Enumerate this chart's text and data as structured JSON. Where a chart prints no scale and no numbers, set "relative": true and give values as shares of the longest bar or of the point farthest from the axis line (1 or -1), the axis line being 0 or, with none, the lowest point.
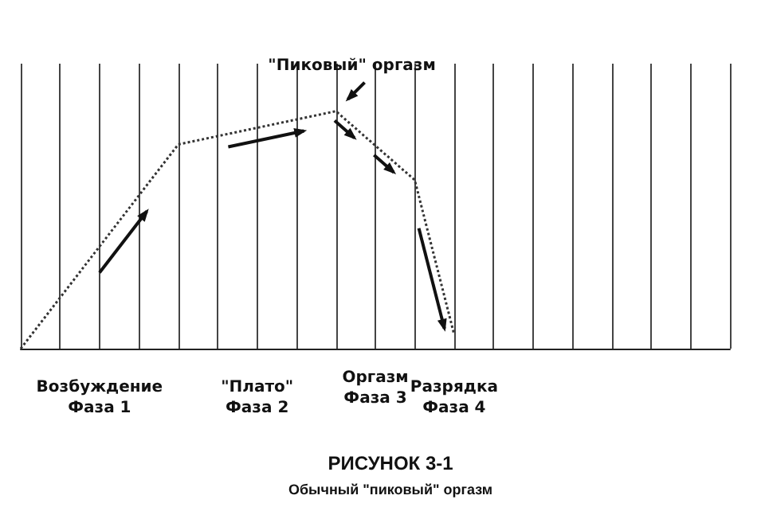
{
  "chart_data": {
    "type": "line",
    "relative": true,
    "title": "РИСУНОК 3-1",
    "subtitle": "Обычный \"пиковый\" оргазм",
    "categories": [
      null,
      null,
      null,
      null,
      null,
      null,
      null,
      null,
      null,
      null,
      null,
      null,
      null,
      null,
      null,
      null,
      null,
      null,
      null
    ],
    "series": [
      {
        "color": "#333333",
        "values": [
          0,
          null,
          null,
          null,
          0.86,
          null,
          null,
          null,
          1,
          null,
          0.71,
          0.06,
          null,
          null,
          null,
          null,
          null,
          null,
          null
        ]
      }
    ],
    "annotations": [
      "\"Пиковый\" оргазм",
      "Возбуждение\nФаза 1",
      "\"Плато\"\nФаза 2",
      "Оргазм\nФаза 3",
      "Разрядка\nФаза 4"
    ],
    "grid": "x",
    "marker": "none",
    "line_style": "dotted"
  }
}
